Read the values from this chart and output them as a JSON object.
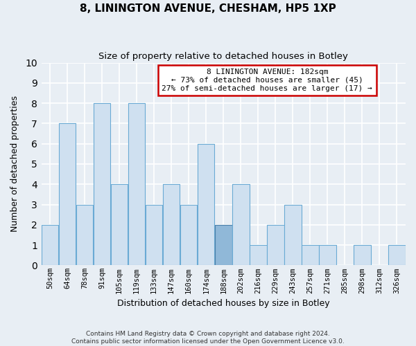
{
  "title": "8, LININGTON AVENUE, CHESHAM, HP5 1XP",
  "subtitle": "Size of property relative to detached houses in Botley",
  "xlabel": "Distribution of detached houses by size in Botley",
  "ylabel": "Number of detached properties",
  "categories": [
    "50sqm",
    "64sqm",
    "78sqm",
    "91sqm",
    "105sqm",
    "119sqm",
    "133sqm",
    "147sqm",
    "160sqm",
    "174sqm",
    "188sqm",
    "202sqm",
    "216sqm",
    "229sqm",
    "243sqm",
    "257sqm",
    "271sqm",
    "285sqm",
    "298sqm",
    "312sqm",
    "326sqm"
  ],
  "values": [
    2,
    7,
    3,
    8,
    4,
    8,
    3,
    4,
    3,
    6,
    2,
    4,
    1,
    2,
    3,
    1,
    1,
    0,
    1,
    0,
    1
  ],
  "highlight_index": 10,
  "bar_color": "#cfe0f0",
  "bar_edge_color": "#6aaad4",
  "highlight_bar_color": "#90b8d8",
  "highlight_bar_edge_color": "#4a80aa",
  "ylim": [
    0,
    10
  ],
  "yticks": [
    0,
    1,
    2,
    3,
    4,
    5,
    6,
    7,
    8,
    9,
    10
  ],
  "annotation_text": "8 LININGTON AVENUE: 182sqm\n← 73% of detached houses are smaller (45)\n27% of semi-detached houses are larger (17) →",
  "annotation_box_color": "#ffffff",
  "annotation_border_color": "#cc0000",
  "footer_line1": "Contains HM Land Registry data © Crown copyright and database right 2024.",
  "footer_line2": "Contains public sector information licensed under the Open Government Licence v3.0.",
  "background_color": "#e8eef4",
  "grid_color": "#ffffff",
  "figwidth": 6.0,
  "figheight": 5.0,
  "dpi": 100
}
